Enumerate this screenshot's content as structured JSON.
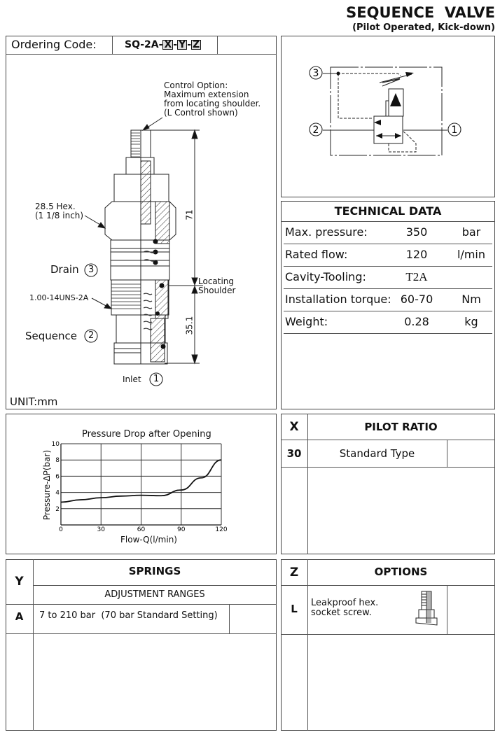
{
  "header": {
    "title": "SEQUENCE  VALVE",
    "subtitle": "(Pilot Operated, Kick-down)"
  },
  "ordering": {
    "label": "Ordering Code:",
    "prefix": "SQ-2A-",
    "x": "X",
    "y": "Y",
    "z": "Z",
    "sep": "-"
  },
  "drawing": {
    "control_option": [
      "Control Option:",
      "Maximum extension",
      "from locating shoulder.",
      "(L Control shown)"
    ],
    "hex": [
      "28.5 Hex.",
      "(1 1/8 inch)"
    ],
    "drain": "Drain",
    "drain_port": "3",
    "thread": "1.00-14UNS-2A",
    "sequence": "Sequence",
    "sequence_port": "2",
    "inlet": "Inlet",
    "inlet_port": "1",
    "locating": [
      "Locating",
      "Shoulder"
    ],
    "dim_total": "71",
    "dim_lower": "35.1",
    "unit": "UNIT:mm"
  },
  "symbol": {
    "ports": [
      "3",
      "2",
      "1"
    ]
  },
  "technical_data": {
    "title": "TECHNICAL DATA",
    "rows": [
      {
        "label": "Max. pressure:",
        "value": "350",
        "unit": "bar"
      },
      {
        "label": "Rated flow:",
        "value": "120",
        "unit": "l/min"
      },
      {
        "label": "Cavity-Tooling:",
        "value": "T2A",
        "unit": ""
      },
      {
        "label": "Installation torque:",
        "value": "60-70",
        "unit": "Nm"
      },
      {
        "label": "Weight:",
        "value": "0.28",
        "unit": "kg"
      }
    ]
  },
  "chart_data": {
    "type": "line",
    "title": "Pressure Drop after Opening",
    "xlabel": "Flow-Q(l/min)",
    "ylabel": "Pressure-ΔP(bar)",
    "xlim": [
      0,
      120
    ],
    "ylim": [
      0,
      10
    ],
    "xticks": [
      "0",
      "30",
      "60",
      "90",
      "120"
    ],
    "yticks": [
      "2",
      "4",
      "6",
      "8",
      "10"
    ],
    "grid": true,
    "x": [
      0,
      15,
      30,
      45,
      60,
      75,
      90,
      105,
      120
    ],
    "y": [
      2.8,
      3.1,
      3.35,
      3.55,
      3.65,
      3.6,
      4.3,
      5.8,
      8.0
    ]
  },
  "pilot_ratio": {
    "col": "X",
    "title": "PILOT RATIO",
    "rows": [
      {
        "code": "30",
        "desc": "Standard Type"
      }
    ]
  },
  "springs": {
    "col": "Y",
    "title": "SPRINGS",
    "subtitle": "ADJUSTMENT RANGES",
    "rows": [
      {
        "code": "A",
        "desc": "7 to 210 bar  (70 bar Standard Setting)"
      }
    ]
  },
  "options": {
    "col": "Z",
    "title": "OPTIONS",
    "rows": [
      {
        "code": "L",
        "desc": [
          "Leakproof hex.",
          "socket screw."
        ]
      }
    ]
  }
}
